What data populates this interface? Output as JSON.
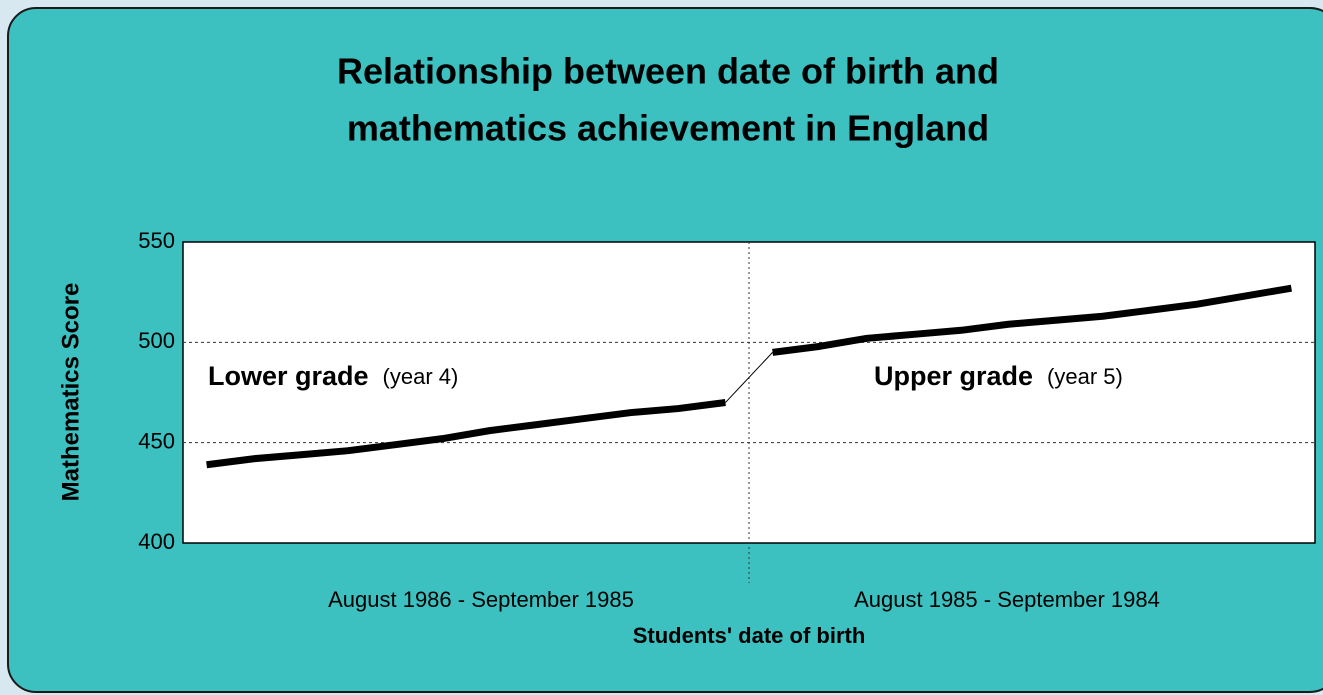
{
  "chart_data": {
    "type": "line",
    "title": "Relationship between date of birth and",
    "title_line2": "mathematics achievement in England",
    "y_label": "Mathematics Score",
    "x_label": "Students' date of birth",
    "categories": [
      null,
      null,
      null,
      null,
      null,
      null,
      null,
      null,
      null,
      null,
      null,
      null,
      null,
      null,
      null,
      null,
      null,
      null,
      null,
      null,
      null,
      null,
      null,
      null
    ],
    "category_groups": [
      {
        "label": "August 1986 - September 1985",
        "start": 0,
        "end": 11,
        "annotation": "Lower grade",
        "annotation_note": "(year 4)"
      },
      {
        "label": "August 1985 - September 1984",
        "start": 12,
        "end": 23,
        "annotation": "Upper grade",
        "annotation_note": "(year 5)"
      }
    ],
    "series": [
      {
        "color": "#000000",
        "values": [
          439,
          442,
          444,
          446,
          449,
          452,
          456,
          459,
          462,
          465,
          467,
          470,
          495,
          498,
          502,
          504,
          506,
          509,
          511,
          513,
          516,
          519,
          523,
          527
        ]
      }
    ],
    "ylim": [
      400,
      550
    ],
    "yticks": [
      400,
      450,
      500,
      550
    ],
    "grid": true
  }
}
